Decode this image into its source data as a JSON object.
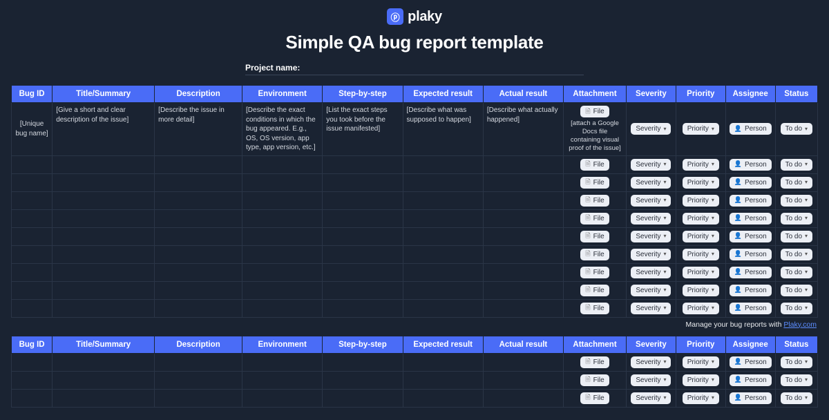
{
  "brand": {
    "badge_glyph": "ⓟ",
    "name": "plaky"
  },
  "title": "Simple QA bug report template",
  "project_label": "Project name:",
  "columns": [
    "Bug ID",
    "Title/Summary",
    "Description",
    "Environment",
    "Step-by-step",
    "Expected result",
    "Actual result",
    "Attachment",
    "Severity",
    "Priority",
    "Assignee",
    "Status"
  ],
  "placeholders": {
    "bug_id": "[Unique bug name]",
    "title": "[Give a short and clear description of the issue]",
    "description": "[Describe the issue in more detail]",
    "environment": "[Describe the exact conditions in which the bug appeared. E.g., OS, OS version, app type, app version, etc.]",
    "steps": "[List the exact steps you took before the issue manifested]",
    "expected": "[Describe what was supposed to happen]",
    "actual": "[Describe what actually happened]",
    "attachment_note": "[attach a Google Docs file containing visual proof of the issue]"
  },
  "pill_labels": {
    "file": "File",
    "severity": "Severity",
    "priority": "Priority",
    "person": "Person",
    "todo": "To do"
  },
  "table1_extra_rows": 9,
  "table2_rows": 3,
  "footer": {
    "text": "Manage your bug reports with ",
    "link_text": "Plaky.com"
  },
  "colors": {
    "bg": "#1a2332",
    "header": "#4a6cf7",
    "border": "#2a3547",
    "pill_bg": "#eceff5",
    "pill_text": "#2a2f3a",
    "link": "#5c8dff"
  }
}
